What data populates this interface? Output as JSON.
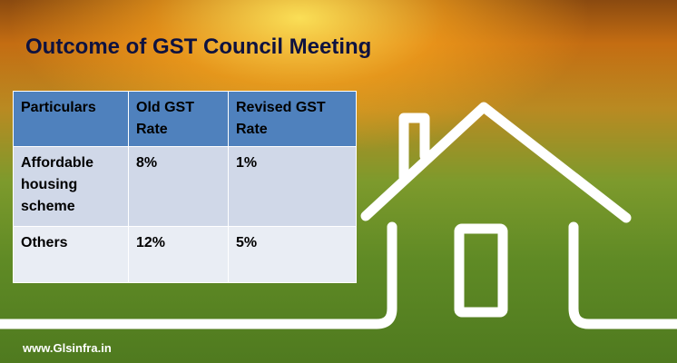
{
  "title": "Outcome of GST Council Meeting",
  "table": {
    "header": [
      "Particulars",
      "Old GST Rate",
      "Revised GST Rate"
    ],
    "rows": [
      [
        "Affordable housing scheme",
        "8%",
        "1%"
      ],
      [
        "Others",
        "12%",
        "5%"
      ]
    ]
  },
  "footer": "www.Glsinfra.in"
}
